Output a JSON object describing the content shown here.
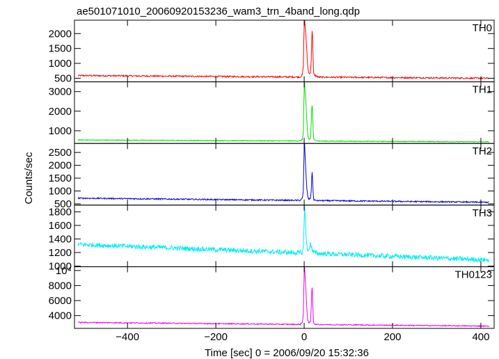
{
  "chart_data": {
    "type": "line",
    "title": "ae501071010_20060920153236_wam3_trn_4band_long.qdp",
    "xlabel": "Time [sec] 0 = 2006/09/20 15:32:36",
    "ylabel": "Counts/sec",
    "xlim": [
      -520,
      430
    ],
    "xticks": [
      -400,
      -200,
      0,
      200,
      400
    ],
    "xtick_labels": [
      "−400",
      "−200",
      "0",
      "200",
      "400"
    ],
    "grid": false,
    "series": [
      {
        "name": "TH0",
        "color": "#ff0000",
        "ylim": [
          380,
          2450
        ],
        "yticks": [
          500,
          1000,
          1500,
          2000
        ],
        "ytick_labels": [
          "500",
          "1000",
          "1500",
          "2000"
        ],
        "baseline_start": 590,
        "baseline_end": 500,
        "noise": 25,
        "x": [
          -8,
          -4,
          -2,
          0,
          1,
          2,
          4,
          6,
          8,
          10,
          12,
          14,
          16,
          17,
          18,
          19,
          20,
          21,
          22,
          24,
          26,
          30
        ],
        "y": [
          560,
          620,
          900,
          2300,
          2480,
          2300,
          1900,
          1400,
          900,
          700,
          650,
          700,
          1100,
          1800,
          2100,
          1900,
          1200,
          800,
          640,
          600,
          580,
          560
        ]
      },
      {
        "name": "TH1",
        "color": "#00e000",
        "ylim": [
          350,
          3500
        ],
        "yticks": [
          1000,
          2000,
          3000
        ],
        "ytick_labels": [
          "1000",
          "2000",
          "3000"
        ],
        "baseline_start": 530,
        "baseline_end": 430,
        "noise": 20,
        "x": [
          -8,
          -4,
          -2,
          0,
          1,
          2,
          4,
          6,
          8,
          10,
          12,
          14,
          16,
          17,
          18,
          19,
          20,
          21,
          22,
          24,
          26,
          30
        ],
        "y": [
          500,
          560,
          900,
          3200,
          3550,
          3000,
          2400,
          1500,
          800,
          600,
          560,
          620,
          1400,
          2100,
          2300,
          2000,
          1200,
          700,
          560,
          520,
          510,
          500
        ]
      },
      {
        "name": "TH2",
        "color": "#0000dd",
        "ylim": [
          450,
          2850
        ],
        "yticks": [
          500,
          1000,
          1500,
          2000,
          2500
        ],
        "ytick_labels": [
          "500",
          "1000",
          "1500",
          "2000",
          "2500"
        ],
        "baseline_start": 720,
        "baseline_end": 560,
        "noise": 25,
        "x": [
          -8,
          -4,
          -2,
          0,
          1,
          2,
          4,
          6,
          8,
          10,
          12,
          14,
          16,
          17,
          18,
          19,
          20,
          21,
          22,
          24,
          26,
          30
        ],
        "y": [
          660,
          720,
          1000,
          2700,
          2900,
          2400,
          1700,
          1100,
          800,
          700,
          680,
          720,
          1000,
          1500,
          1750,
          1500,
          1000,
          760,
          660,
          640,
          630,
          620
        ]
      },
      {
        "name": "TH3",
        "color": "#00eeee",
        "ylim": [
          990,
          1900
        ],
        "yticks": [
          1000,
          1200,
          1400,
          1600,
          1800
        ],
        "ytick_labels": [
          "1000",
          "1200",
          "1400",
          "1600",
          "1800"
        ],
        "baseline_start": 1320,
        "baseline_end": 1090,
        "noise": 35,
        "x": [
          -6,
          -2,
          0,
          1,
          2,
          4,
          6,
          8,
          10,
          12,
          14,
          16,
          18,
          20,
          24,
          28
        ],
        "y": [
          1180,
          1250,
          1700,
          1900,
          1750,
          1450,
          1300,
          1250,
          1220,
          1260,
          1350,
          1300,
          1240,
          1210,
          1200,
          1190
        ]
      },
      {
        "name": "TH0123",
        "color": "#ee00ee",
        "ylim": [
          2300,
          10500
        ],
        "yticks": [
          4000,
          6000,
          8000,
          10000
        ],
        "ytick_labels": [
          "4000",
          "6000",
          "8000",
          "10⁴"
        ],
        "baseline_start": 3100,
        "baseline_end": 2600,
        "noise": 70,
        "x": [
          -8,
          -4,
          -2,
          0,
          1,
          2,
          4,
          6,
          8,
          10,
          12,
          14,
          16,
          17,
          18,
          19,
          20,
          21,
          22,
          24,
          26,
          30
        ],
        "y": [
          2900,
          3100,
          4200,
          9800,
          10500,
          9200,
          7200,
          5000,
          3500,
          3100,
          3000,
          3200,
          5000,
          7200,
          7700,
          6800,
          4500,
          3200,
          2950,
          2880,
          2850,
          2820
        ]
      }
    ]
  }
}
